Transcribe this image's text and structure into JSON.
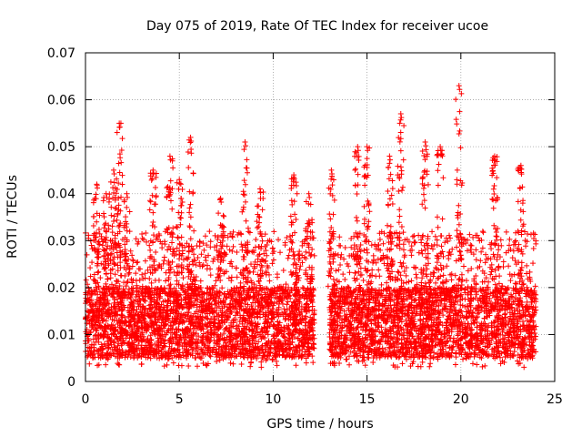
{
  "chart_data": {
    "type": "scatter",
    "title": "Day 075 of 2019, Rate Of TEC Index for receiver ucoe",
    "xlabel": "GPS time / hours",
    "ylabel": "ROTI / TECUs",
    "xlim": [
      0,
      25
    ],
    "ylim": [
      0,
      0.07
    ],
    "x_ticks": [
      0,
      5,
      10,
      15,
      20,
      25
    ],
    "x_tick_labels": [
      "0",
      "5",
      "10",
      "15",
      "20",
      "25"
    ],
    "y_ticks": [
      0,
      0.01,
      0.02,
      0.03,
      0.04,
      0.05,
      0.06,
      0.07
    ],
    "y_tick_labels": [
      "0",
      "0.01",
      "0.02",
      "0.03",
      "0.04",
      "0.05",
      "0.06",
      "0.07"
    ],
    "grid": true,
    "marker": "plus",
    "color": "#ff0000",
    "series": [
      {
        "name": "ROTI",
        "band_summary": {
          "x_ranges": [
            [
              0,
              12.2
            ],
            [
              13.0,
              24.0
            ]
          ],
          "core_y_range": [
            0.005,
            0.02
          ],
          "gap_x_range": [
            12.2,
            13.0
          ]
        },
        "peaks": [
          {
            "x": 0.6,
            "y": 0.042
          },
          {
            "x": 1.1,
            "y": 0.04
          },
          {
            "x": 1.5,
            "y": 0.045
          },
          {
            "x": 1.8,
            "y": 0.055
          },
          {
            "x": 2.2,
            "y": 0.04
          },
          {
            "x": 3.6,
            "y": 0.045
          },
          {
            "x": 4.5,
            "y": 0.048
          },
          {
            "x": 5.0,
            "y": 0.043
          },
          {
            "x": 5.6,
            "y": 0.052
          },
          {
            "x": 7.2,
            "y": 0.039
          },
          {
            "x": 8.5,
            "y": 0.051
          },
          {
            "x": 9.3,
            "y": 0.041
          },
          {
            "x": 11.1,
            "y": 0.044
          },
          {
            "x": 11.9,
            "y": 0.04
          },
          {
            "x": 13.1,
            "y": 0.045
          },
          {
            "x": 14.5,
            "y": 0.05
          },
          {
            "x": 15.0,
            "y": 0.05
          },
          {
            "x": 16.2,
            "y": 0.048
          },
          {
            "x": 16.8,
            "y": 0.057
          },
          {
            "x": 18.1,
            "y": 0.051
          },
          {
            "x": 18.9,
            "y": 0.05
          },
          {
            "x": 19.9,
            "y": 0.063
          },
          {
            "x": 21.8,
            "y": 0.048
          },
          {
            "x": 23.2,
            "y": 0.046
          }
        ]
      }
    ]
  }
}
